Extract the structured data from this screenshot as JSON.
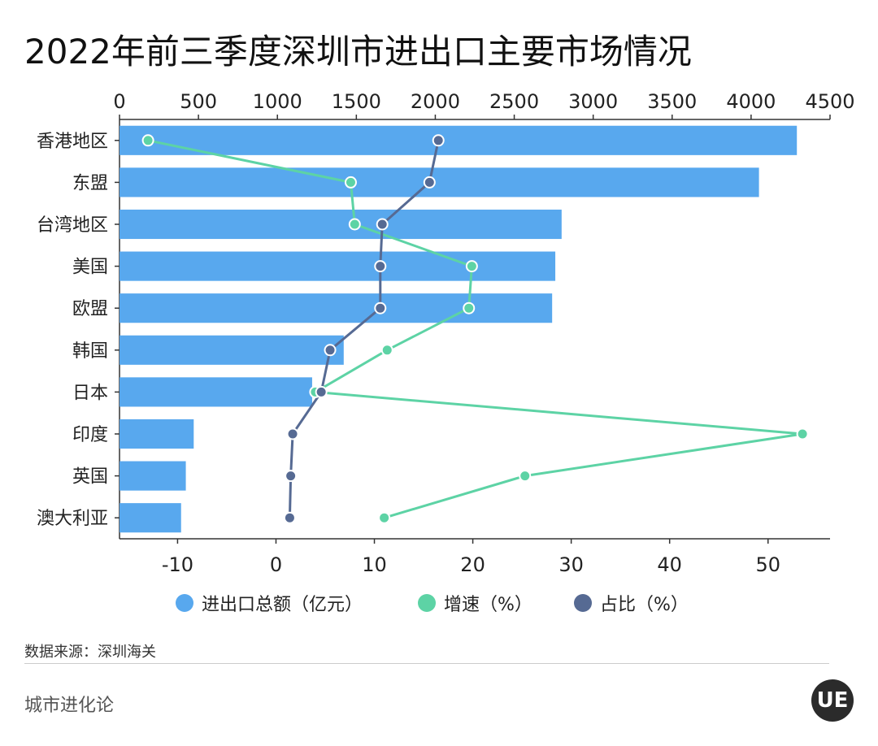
{
  "title": "2022年前三季度深圳市进出口主要市场情况",
  "source": "数据来源：深圳海关",
  "brand": "城市进化论",
  "logo_text": "UE",
  "legend": [
    {
      "label": "进出口总额（亿元）",
      "color": "#58a8ee"
    },
    {
      "label": "增速（%）",
      "color": "#5dd3a5"
    },
    {
      "label": "占比（%）",
      "color": "#566a93"
    }
  ],
  "chart_data": {
    "type": "bar",
    "orientation": "horizontal",
    "categories": [
      "香港地区",
      "东盟",
      "台湾地区",
      "美国",
      "欧盟",
      "韩国",
      "日本",
      "印度",
      "英国",
      "澳大利亚"
    ],
    "series": [
      {
        "name": "进出口总额（亿元）",
        "type": "bar",
        "axis": "top",
        "color": "#58a8ee",
        "values": [
          4290,
          4050,
          2800,
          2760,
          2740,
          1420,
          1220,
          470,
          420,
          390
        ]
      },
      {
        "name": "增速（%）",
        "type": "line",
        "axis": "bottom",
        "color": "#5dd3a5",
        "values": [
          -13.0,
          7.6,
          8.0,
          19.9,
          19.6,
          11.3,
          4.0,
          53.5,
          25.3,
          11.0
        ]
      },
      {
        "name": "占比（%）",
        "type": "line",
        "axis": "bottom",
        "color": "#566a93",
        "values": [
          16.5,
          15.6,
          10.8,
          10.6,
          10.6,
          5.5,
          4.6,
          1.7,
          1.5,
          1.4
        ]
      }
    ],
    "x_top": {
      "range": [
        0,
        4500
      ],
      "ticks": [
        0,
        500,
        1000,
        1500,
        2000,
        2500,
        3000,
        3500,
        4000,
        4500
      ]
    },
    "x_bottom": {
      "range": [
        -15.9,
        56.3
      ],
      "ticks": [
        -10,
        0,
        10,
        20,
        30,
        40,
        50
      ]
    },
    "grid": false,
    "legend_position": "bottom"
  }
}
